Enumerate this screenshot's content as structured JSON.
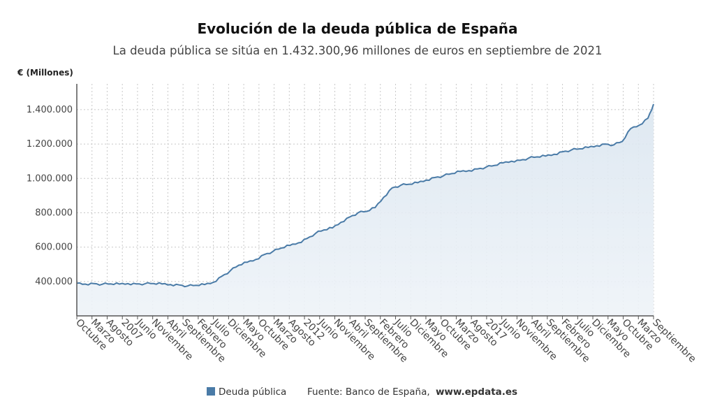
{
  "chart_data": {
    "type": "area",
    "title": "Evolución de la deuda pública de España",
    "subtitle": "La deuda pública se sitúa en 1.432.300,96 millones de euros en septiembre de 2021",
    "ylabel": "€ (Millones)",
    "ylim": [
      200000,
      1550000
    ],
    "yticks": [
      400000,
      600000,
      800000,
      1000000,
      1200000,
      1400000
    ],
    "ytick_labels": [
      "400.000",
      "600.000",
      "800.000",
      "1.000.000",
      "1.200.000",
      "1.400.000"
    ],
    "x_start": "2004-10",
    "x_end": "2021-09",
    "x_tick_labels": [
      "Octubre",
      "Marzo",
      "Agosto",
      "2007",
      "Junio",
      "Noviembre",
      "Abril",
      "Septiembre",
      "Febrero",
      "Julio",
      "Diciembre",
      "Mayo",
      "Octubre",
      "Marzo",
      "Agosto",
      "2012",
      "Junio",
      "Noviembre",
      "Abril",
      "Septiembre",
      "Febrero",
      "Julio",
      "Diciembre",
      "Mayo",
      "Octubre",
      "Marzo",
      "Agosto",
      "2017",
      "Junio",
      "Noviembre",
      "Abril",
      "Septiembre",
      "Febrero",
      "Julio",
      "Diciembre",
      "Mayo",
      "Octubre",
      "Marzo",
      "Septiembre"
    ],
    "grid": true,
    "series": [
      {
        "name": "Deuda pública",
        "color": "#4a7ba7",
        "points": [
          [
            "2004-10",
            390000
          ],
          [
            "2005-01",
            385000
          ],
          [
            "2005-04",
            388000
          ],
          [
            "2005-07",
            384000
          ],
          [
            "2005-10",
            386000
          ],
          [
            "2006-01",
            385000
          ],
          [
            "2006-04",
            388000
          ],
          [
            "2006-07",
            386000
          ],
          [
            "2006-10",
            387000
          ],
          [
            "2007-01",
            388000
          ],
          [
            "2007-04",
            386000
          ],
          [
            "2007-07",
            382000
          ],
          [
            "2007-10",
            380000
          ],
          [
            "2008-01",
            374000
          ],
          [
            "2008-04",
            378000
          ],
          [
            "2008-07",
            382000
          ],
          [
            "2008-10",
            395000
          ],
          [
            "2009-01",
            430000
          ],
          [
            "2009-04",
            462000
          ],
          [
            "2009-07",
            495000
          ],
          [
            "2009-10",
            512000
          ],
          [
            "2010-01",
            528000
          ],
          [
            "2010-04",
            557000
          ],
          [
            "2010-07",
            575000
          ],
          [
            "2010-10",
            595000
          ],
          [
            "2011-01",
            610000
          ],
          [
            "2011-04",
            625000
          ],
          [
            "2011-07",
            650000
          ],
          [
            "2011-10",
            680000
          ],
          [
            "2012-01",
            700000
          ],
          [
            "2012-04",
            712000
          ],
          [
            "2012-07",
            745000
          ],
          [
            "2012-10",
            775000
          ],
          [
            "2013-01",
            800000
          ],
          [
            "2013-04",
            808000
          ],
          [
            "2013-07",
            830000
          ],
          [
            "2013-10",
            890000
          ],
          [
            "2014-01",
            945000
          ],
          [
            "2014-04",
            960000
          ],
          [
            "2014-07",
            966000
          ],
          [
            "2014-10",
            975000
          ],
          [
            "2015-01",
            990000
          ],
          [
            "2015-04",
            1005000
          ],
          [
            "2015-07",
            1015000
          ],
          [
            "2015-10",
            1028000
          ],
          [
            "2016-01",
            1040000
          ],
          [
            "2016-04",
            1045000
          ],
          [
            "2016-07",
            1055000
          ],
          [
            "2016-10",
            1065000
          ],
          [
            "2017-01",
            1075000
          ],
          [
            "2017-04",
            1090000
          ],
          [
            "2017-07",
            1100000
          ],
          [
            "2017-10",
            1105000
          ],
          [
            "2018-01",
            1118000
          ],
          [
            "2018-04",
            1125000
          ],
          [
            "2018-07",
            1130000
          ],
          [
            "2018-10",
            1140000
          ],
          [
            "2019-01",
            1155000
          ],
          [
            "2019-04",
            1165000
          ],
          [
            "2019-07",
            1172000
          ],
          [
            "2019-10",
            1180000
          ],
          [
            "2020-01",
            1190000
          ],
          [
            "2020-04",
            1200000
          ],
          [
            "2020-07",
            1195000
          ],
          [
            "2020-10",
            1215000
          ],
          [
            "2021-01",
            1290000
          ],
          [
            "2021-04",
            1310000
          ],
          [
            "2021-07",
            1350000
          ],
          [
            "2021-09",
            1432300.96
          ]
        ]
      }
    ]
  },
  "legend": {
    "series_label": "Deuda pública",
    "source_label": "Fuente: Banco de España,",
    "source_url": "www.epdata.es"
  }
}
